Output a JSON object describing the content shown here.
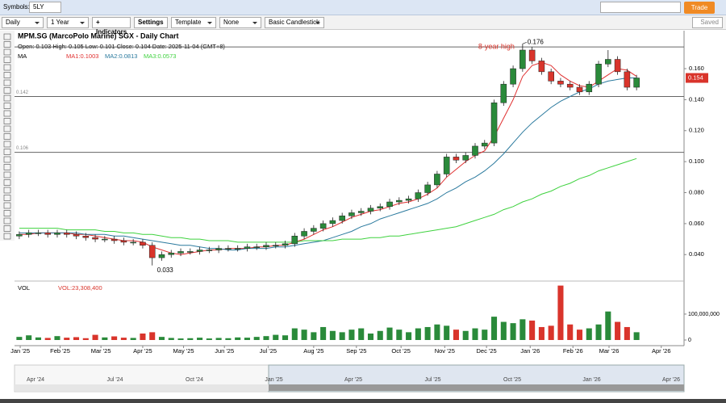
{
  "toolbar": {
    "symbols_label": "Symbols:",
    "symbol": "5LY",
    "trade": "Trade",
    "interval": "Daily",
    "range": "1 Year",
    "indicators": "+ Indicators",
    "settings": "Settings",
    "template": "Template",
    "none": "None",
    "style": "Basic Candlestick",
    "saved": "Saved"
  },
  "chart_data": {
    "type": "candlestick",
    "title": "MPM.SG (MarcoPolo Marine) SGX - Daily Chart",
    "ohlc_text": "Open: 0.103  High: 0.105  Low: 0.101  Close: 0.104  Date: 2025-11-04 (GMT+8)",
    "ma_label": "MA",
    "xlim": [
      -0.5,
      70
    ],
    "xticks": [
      {
        "value": 0.1,
        "label": "Jan '25"
      },
      {
        "value": 4.3,
        "label": "Feb '25"
      },
      {
        "value": 8.6,
        "label": "Mar '25"
      },
      {
        "value": 13,
        "label": "Apr '25"
      },
      {
        "value": 17.3,
        "label": "May '25"
      },
      {
        "value": 21.6,
        "label": "Jun '25"
      },
      {
        "value": 26.2,
        "label": "Jul '25"
      },
      {
        "value": 31,
        "label": "Aug '25"
      },
      {
        "value": 35.5,
        "label": "Sep '25"
      },
      {
        "value": 40.2,
        "label": "Oct '25"
      },
      {
        "value": 44.8,
        "label": "Nov '25"
      },
      {
        "value": 49.2,
        "label": "Dec '25"
      },
      {
        "value": 53.8,
        "label": "Jan '26"
      },
      {
        "value": 58.3,
        "label": "Feb '26"
      },
      {
        "value": 62.1,
        "label": "Mar '26"
      },
      {
        "value": 67.6,
        "label": "Apr '26"
      }
    ],
    "ylim": [
      0.0245,
      0.1845
    ],
    "yticks": [
      {
        "value": 0.04,
        "label": "0.040"
      },
      {
        "value": 0.06,
        "label": "0.060"
      },
      {
        "value": 0.08,
        "label": "0.080"
      },
      {
        "value": 0.1,
        "label": "0.100"
      },
      {
        "value": 0.12,
        "label": "0.120"
      },
      {
        "value": 0.14,
        "label": "0.140"
      },
      {
        "value": 0.16,
        "label": "0.160"
      }
    ],
    "up_color": "#2a8a3a",
    "down_color": "#d9342b",
    "open": [
      0.052,
      0.053,
      0.054,
      0.054,
      0.053,
      0.054,
      0.053,
      0.052,
      0.051,
      0.05,
      0.05,
      0.049,
      0.048,
      0.048,
      0.046,
      0.038,
      0.04,
      0.041,
      0.042,
      0.042,
      0.043,
      0.043,
      0.044,
      0.044,
      0.044,
      0.045,
      0.045,
      0.046,
      0.046,
      0.047,
      0.052,
      0.055,
      0.057,
      0.06,
      0.062,
      0.065,
      0.067,
      0.068,
      0.07,
      0.071,
      0.074,
      0.075,
      0.076,
      0.08,
      0.085,
      0.092,
      0.103,
      0.101,
      0.104,
      0.11,
      0.112,
      0.138,
      0.15,
      0.16,
      0.172,
      0.165,
      0.158,
      0.152,
      0.15,
      0.148,
      0.145,
      0.15,
      0.163,
      0.166,
      0.158,
      0.148
    ],
    "high": [
      0.055,
      0.056,
      0.056,
      0.056,
      0.056,
      0.056,
      0.055,
      0.054,
      0.053,
      0.052,
      0.052,
      0.051,
      0.05,
      0.05,
      0.048,
      0.042,
      0.043,
      0.044,
      0.044,
      0.045,
      0.045,
      0.046,
      0.046,
      0.046,
      0.047,
      0.047,
      0.048,
      0.048,
      0.049,
      0.054,
      0.057,
      0.059,
      0.062,
      0.064,
      0.067,
      0.069,
      0.07,
      0.072,
      0.073,
      0.076,
      0.077,
      0.078,
      0.082,
      0.087,
      0.094,
      0.105,
      0.105,
      0.106,
      0.112,
      0.114,
      0.14,
      0.152,
      0.162,
      0.176,
      0.174,
      0.167,
      0.16,
      0.154,
      0.152,
      0.15,
      0.152,
      0.165,
      0.172,
      0.168,
      0.16,
      0.156
    ],
    "low": [
      0.05,
      0.051,
      0.052,
      0.051,
      0.051,
      0.051,
      0.05,
      0.049,
      0.048,
      0.048,
      0.047,
      0.046,
      0.046,
      0.044,
      0.033,
      0.036,
      0.038,
      0.039,
      0.04,
      0.04,
      0.041,
      0.041,
      0.042,
      0.042,
      0.042,
      0.043,
      0.043,
      0.044,
      0.044,
      0.045,
      0.05,
      0.053,
      0.055,
      0.058,
      0.06,
      0.063,
      0.065,
      0.066,
      0.068,
      0.069,
      0.072,
      0.073,
      0.074,
      0.078,
      0.083,
      0.09,
      0.099,
      0.099,
      0.102,
      0.108,
      0.11,
      0.136,
      0.148,
      0.158,
      0.163,
      0.156,
      0.15,
      0.148,
      0.146,
      0.143,
      0.143,
      0.148,
      0.161,
      0.156,
      0.146,
      0.146
    ],
    "close": [
      0.053,
      0.054,
      0.054,
      0.053,
      0.054,
      0.053,
      0.052,
      0.051,
      0.05,
      0.05,
      0.049,
      0.048,
      0.048,
      0.046,
      0.038,
      0.04,
      0.041,
      0.042,
      0.042,
      0.043,
      0.043,
      0.044,
      0.044,
      0.044,
      0.045,
      0.045,
      0.046,
      0.046,
      0.047,
      0.052,
      0.055,
      0.057,
      0.06,
      0.062,
      0.065,
      0.067,
      0.068,
      0.07,
      0.071,
      0.074,
      0.075,
      0.076,
      0.08,
      0.085,
      0.092,
      0.103,
      0.101,
      0.104,
      0.11,
      0.112,
      0.138,
      0.15,
      0.16,
      0.172,
      0.165,
      0.158,
      0.152,
      0.15,
      0.148,
      0.145,
      0.15,
      0.163,
      0.166,
      0.158,
      0.148,
      0.154
    ],
    "ma_series": [
      {
        "name": "MA1:0.1003",
        "color": "#e03030",
        "values": [
          0.053,
          0.053,
          0.054,
          0.054,
          0.054,
          0.054,
          0.053,
          0.053,
          0.052,
          0.051,
          0.05,
          0.049,
          0.049,
          0.048,
          0.045,
          0.043,
          0.041,
          0.04,
          0.041,
          0.042,
          0.043,
          0.043,
          0.044,
          0.044,
          0.044,
          0.045,
          0.045,
          0.046,
          0.046,
          0.048,
          0.05,
          0.053,
          0.056,
          0.058,
          0.061,
          0.064,
          0.066,
          0.068,
          0.069,
          0.071,
          0.073,
          0.074,
          0.076,
          0.079,
          0.083,
          0.09,
          0.095,
          0.1,
          0.104,
          0.107,
          0.116,
          0.128,
          0.14,
          0.155,
          0.162,
          0.164,
          0.162,
          0.156,
          0.152,
          0.149,
          0.148,
          0.152,
          0.156,
          0.16,
          0.159,
          0.155
        ]
      },
      {
        "name": "MA2:0.0813",
        "color": "#2b7a9e",
        "values": [
          0.054,
          0.054,
          0.054,
          0.054,
          0.054,
          0.054,
          0.054,
          0.053,
          0.053,
          0.053,
          0.052,
          0.052,
          0.051,
          0.05,
          0.049,
          0.048,
          0.047,
          0.046,
          0.046,
          0.045,
          0.044,
          0.044,
          0.043,
          0.043,
          0.044,
          0.044,
          0.044,
          0.045,
          0.045,
          0.046,
          0.047,
          0.048,
          0.049,
          0.051,
          0.053,
          0.055,
          0.058,
          0.06,
          0.063,
          0.065,
          0.067,
          0.069,
          0.071,
          0.073,
          0.076,
          0.08,
          0.083,
          0.087,
          0.09,
          0.094,
          0.099,
          0.105,
          0.112,
          0.119,
          0.125,
          0.13,
          0.135,
          0.139,
          0.142,
          0.145,
          0.147,
          0.15,
          0.152,
          0.153,
          0.154,
          0.154
        ]
      },
      {
        "name": "MA3:0.0573",
        "color": "#3fd23f",
        "values": [
          0.057,
          0.057,
          0.057,
          0.057,
          0.057,
          0.056,
          0.056,
          0.056,
          0.056,
          0.055,
          0.055,
          0.054,
          0.054,
          0.053,
          0.053,
          0.052,
          0.051,
          0.051,
          0.05,
          0.05,
          0.049,
          0.049,
          0.049,
          0.048,
          0.048,
          0.048,
          0.048,
          0.048,
          0.048,
          0.048,
          0.049,
          0.049,
          0.049,
          0.049,
          0.05,
          0.05,
          0.05,
          0.051,
          0.051,
          0.052,
          0.052,
          0.053,
          0.054,
          0.055,
          0.056,
          0.057,
          0.058,
          0.06,
          0.062,
          0.064,
          0.066,
          0.069,
          0.071,
          0.074,
          0.076,
          0.079,
          0.081,
          0.084,
          0.086,
          0.089,
          0.091,
          0.094,
          0.096,
          0.098,
          0.1,
          0.102
        ]
      }
    ],
    "hlines": [
      {
        "value": 0.174
      },
      {
        "value": 0.142,
        "label": "0.142"
      },
      {
        "value": 0.106,
        "label": "0.106"
      }
    ],
    "max_label": "0.176",
    "max_note": "8-year high",
    "min_label": "0.033",
    "last_label": "0.154",
    "volume": {
      "label": "VOL",
      "value_label": "VOL:23,308,400",
      "ylim": [
        0,
        215000000
      ],
      "yticks": [
        0,
        {
          "value": 100000000,
          "label": "100,000,000"
        }
      ],
      "values": [
        12000000,
        18000000,
        10000000,
        8000000,
        15000000,
        9000000,
        11000000,
        7000000,
        20000000,
        10000000,
        14000000,
        9000000,
        8000000,
        25000000,
        30000000,
        12000000,
        8000000,
        6000000,
        7000000,
        9000000,
        6000000,
        8000000,
        7000000,
        10000000,
        9000000,
        12000000,
        15000000,
        20000000,
        18000000,
        45000000,
        40000000,
        30000000,
        50000000,
        35000000,
        30000000,
        40000000,
        45000000,
        25000000,
        35000000,
        48000000,
        40000000,
        30000000,
        45000000,
        50000000,
        60000000,
        55000000,
        40000000,
        35000000,
        45000000,
        40000000,
        90000000,
        70000000,
        65000000,
        80000000,
        75000000,
        50000000,
        55000000,
        210000000,
        60000000,
        40000000,
        45000000,
        60000000,
        110000000,
        70000000,
        50000000,
        30000000
      ]
    },
    "navigator": {
      "labels": [
        "Apr '24",
        "Jul '24",
        "Oct '24",
        "Jan '25",
        "Apr '25",
        "Jul '25",
        "Oct '25",
        "Jan '26",
        "Apr '26"
      ]
    }
  }
}
